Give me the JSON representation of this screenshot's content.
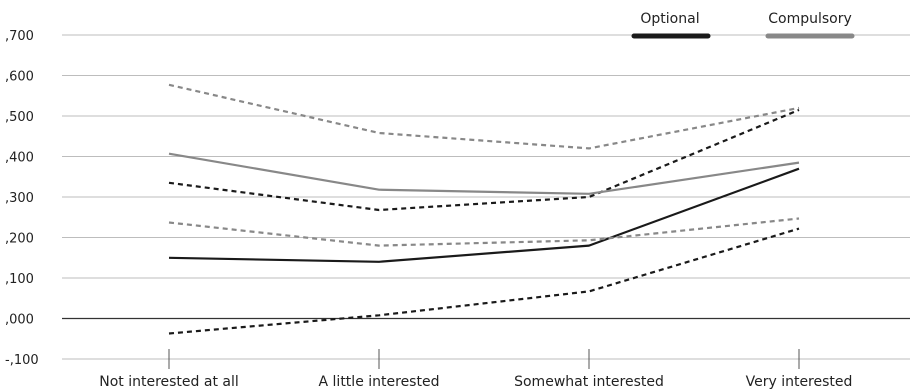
{
  "chart_data": {
    "type": "line",
    "title": "",
    "xlabel": "",
    "ylabel": "",
    "categories": [
      "Not interested at all",
      "A little interested",
      "Somewhat interested",
      "Very interested"
    ],
    "ylim": [
      -0.1,
      0.7
    ],
    "yticks": [
      -0.1,
      0.0,
      0.1,
      0.2,
      0.3,
      0.4,
      0.5,
      0.6,
      0.7
    ],
    "ytick_labels": [
      "-,100",
      ",000",
      ",100",
      ",200",
      ",300",
      ",400",
      ",500",
      ",600",
      ",700"
    ],
    "grid": "horizontal",
    "legend_position": "top-right",
    "legend": [
      {
        "label": "Optional",
        "color": "#1a1a1a"
      },
      {
        "label": "Compulsory",
        "color": "#888888"
      }
    ],
    "series": [
      {
        "group": "Optional",
        "kind": "estimate",
        "color": "#1a1a1a",
        "dash": "solid",
        "values": [
          0.15,
          0.14,
          0.18,
          0.37
        ]
      },
      {
        "group": "Optional",
        "kind": "upper bound",
        "color": "#1a1a1a",
        "dash": "dashed",
        "values": [
          0.335,
          0.268,
          0.3,
          0.515
        ]
      },
      {
        "group": "Optional",
        "kind": "lower bound",
        "color": "#1a1a1a",
        "dash": "dashed",
        "values": [
          -0.037,
          0.008,
          0.067,
          0.222
        ]
      },
      {
        "group": "Compulsory",
        "kind": "estimate",
        "color": "#888888",
        "dash": "solid",
        "values": [
          0.407,
          0.318,
          0.308,
          0.385
        ]
      },
      {
        "group": "Compulsory",
        "kind": "upper bound",
        "color": "#888888",
        "dash": "dashed",
        "values": [
          0.577,
          0.458,
          0.42,
          0.52
        ]
      },
      {
        "group": "Compulsory",
        "kind": "lower bound",
        "color": "#888888",
        "dash": "dashed",
        "values": [
          0.237,
          0.18,
          0.193,
          0.247
        ]
      }
    ]
  }
}
